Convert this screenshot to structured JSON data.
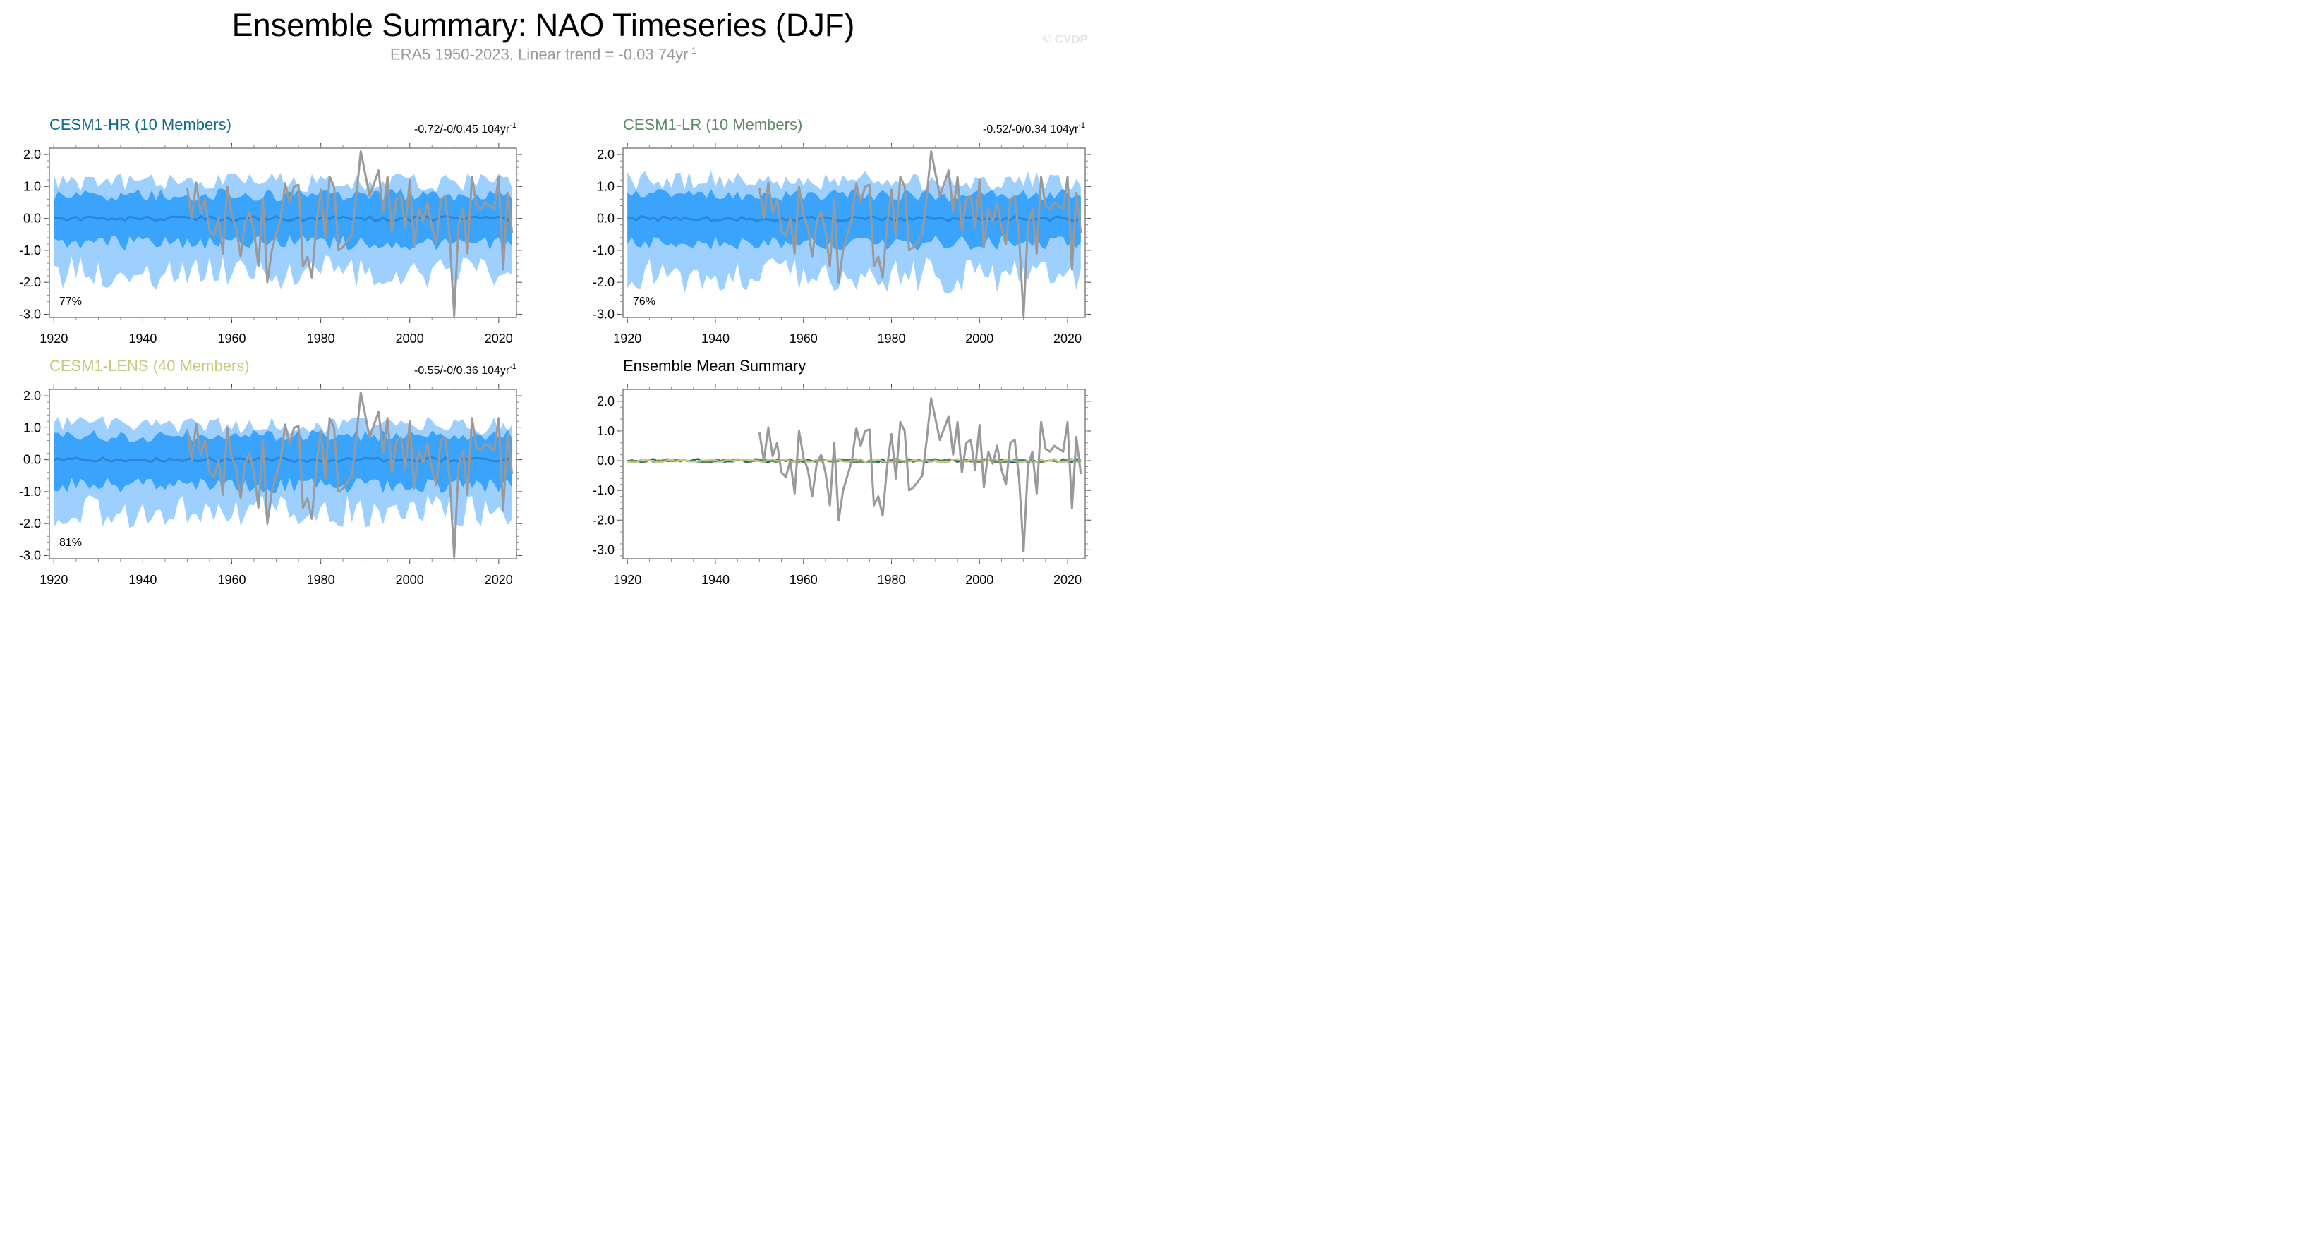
{
  "title": "Ensemble Summary: NAO Timeseries (DJF)",
  "subtitle": "ERA5 1950-2023, Linear trend = -0.03 74yr",
  "subtitle_sup": "-1",
  "watermark": "© CVDP",
  "colors": {
    "outer_spread": "#9dcfff",
    "inner_spread": "#3aa3fb",
    "ensemble_mean": "#2a86d6",
    "observations": "#999999",
    "CESM1-HR": "#0f6b8a",
    "CESM1-LR": "#5e8b62",
    "CESM1-LENS": "#c9c77c"
  },
  "chart_data": [
    {
      "type": "area",
      "title": "CESM1-HR (10 Members)",
      "title_color": "#0f6b8a",
      "trend_label": "-0.72/-0/0.45 104yr",
      "trend_sup": "-1",
      "percent_label": "77%",
      "xlim": [
        1919,
        2024
      ],
      "ylim": [
        -3.1,
        2.2
      ],
      "xticks": [
        1920,
        1940,
        1960,
        1980,
        2000,
        2020
      ],
      "yticks": [
        2.0,
        1.0,
        0.0,
        -1.0,
        -2.0,
        -3.0
      ],
      "seed": 11,
      "outer_amp": 1.1,
      "inner_amp": 0.75
    },
    {
      "type": "area",
      "title": "CESM1-LR (10 Members)",
      "title_color": "#5e8b62",
      "trend_label": "-0.52/-0/0.34 104yr",
      "trend_sup": "-1",
      "percent_label": "76%",
      "xlim": [
        1919,
        2024
      ],
      "ylim": [
        -3.1,
        2.2
      ],
      "xticks": [
        1920,
        1940,
        1960,
        1980,
        2000,
        2020
      ],
      "yticks": [
        2.0,
        1.0,
        0.0,
        -1.0,
        -2.0,
        -3.0
      ],
      "seed": 23,
      "outer_amp": 1.15,
      "inner_amp": 0.75
    },
    {
      "type": "area",
      "title": "CESM1-LENS (40 Members)",
      "title_color": "#c9c77c",
      "trend_label": "-0.55/-0/0.36 104yr",
      "trend_sup": "-1",
      "percent_label": "81%",
      "xlim": [
        1919,
        2024
      ],
      "ylim": [
        -3.1,
        2.2
      ],
      "xticks": [
        1920,
        1940,
        1960,
        1980,
        2000,
        2020
      ],
      "yticks": [
        2.0,
        1.0,
        0.0,
        -1.0,
        -2.0,
        -3.0
      ],
      "seed": 37,
      "outer_amp": 1.05,
      "inner_amp": 0.78
    },
    {
      "type": "line",
      "title": "Ensemble Mean Summary",
      "title_color": "#000000",
      "xlim": [
        1919,
        2024
      ],
      "ylim": [
        -3.3,
        2.4
      ],
      "xticks": [
        1920,
        1940,
        1960,
        1980,
        2000,
        2020
      ],
      "yticks": [
        2.0,
        1.0,
        0.0,
        -1.0,
        -2.0,
        -3.0
      ],
      "series": [
        {
          "name": "CESM1-HR",
          "color": "#0f6b8a"
        },
        {
          "name": "CESM1-LR",
          "color": "#5e8b62"
        },
        {
          "name": "CESM1-LENS",
          "color": "#c9c77c"
        }
      ]
    }
  ],
  "observations": {
    "x": [
      1950,
      1951,
      1952,
      1953,
      1954,
      1955,
      1956,
      1957,
      1958,
      1959,
      1960,
      1961,
      1962,
      1963,
      1964,
      1965,
      1966,
      1967,
      1968,
      1969,
      1970,
      1971,
      1972,
      1973,
      1974,
      1975,
      1976,
      1977,
      1978,
      1979,
      1980,
      1981,
      1982,
      1983,
      1984,
      1985,
      1986,
      1987,
      1988,
      1989,
      1990,
      1991,
      1992,
      1993,
      1994,
      1995,
      1996,
      1997,
      1998,
      1999,
      2000,
      2001,
      2002,
      2003,
      2004,
      2005,
      2006,
      2007,
      2008,
      2009,
      2010,
      2011,
      2012,
      2013,
      2014,
      2015,
      2016,
      2017,
      2018,
      2019,
      2020,
      2021,
      2022,
      2023
    ],
    "y": [
      0.95,
      0.0,
      1.12,
      0.15,
      0.6,
      -0.4,
      -0.55,
      0.0,
      -1.1,
      1.0,
      0.1,
      -0.3,
      -1.2,
      -0.1,
      0.2,
      -0.4,
      -1.5,
      0.6,
      -2.0,
      -1.0,
      -0.5,
      0.0,
      1.1,
      0.5,
      1.0,
      1.05,
      -1.5,
      -1.2,
      -1.85,
      -0.2,
      0.9,
      -0.6,
      1.3,
      1.0,
      -1.0,
      -0.9,
      -0.7,
      -0.5,
      0.7,
      2.1,
      1.4,
      0.7,
      1.1,
      1.5,
      0.2,
      1.3,
      -0.4,
      0.6,
      0.7,
      -0.3,
      1.2,
      -0.9,
      0.3,
      -0.1,
      0.5,
      -0.3,
      -0.8,
      0.6,
      0.7,
      -0.6,
      -3.05,
      -0.2,
      0.3,
      -1.1,
      1.3,
      0.4,
      0.3,
      0.5,
      0.4,
      0.3,
      1.3,
      -1.6,
      0.8,
      -0.45
    ]
  }
}
